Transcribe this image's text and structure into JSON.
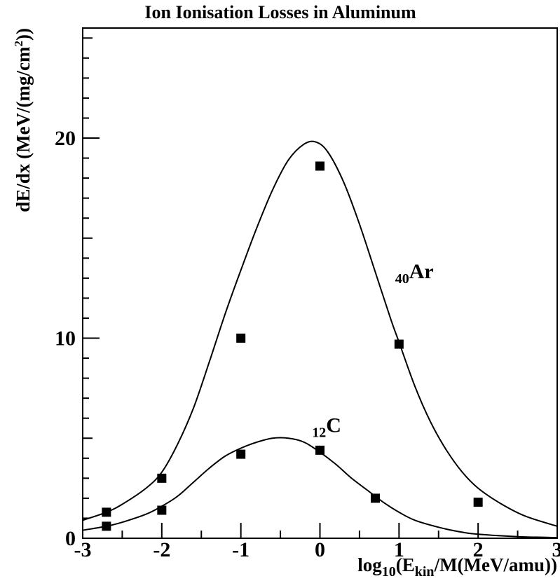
{
  "chart_data": {
    "type": "line",
    "title": "Ion Ionisation Losses in Aluminum",
    "xlabel": {
      "pre": "log",
      "sub1": "10",
      "mid": "(E",
      "sub2": "kin",
      "post": "/M(MeV/amu))"
    },
    "ylabel": {
      "pre": "dE/dx (MeV/(mg/cm",
      "sup": "2",
      "post": "))"
    },
    "xlim": [
      -3,
      3
    ],
    "ylim": [
      0,
      25.5
    ],
    "xticks": [
      -3,
      -2,
      -1,
      0,
      1,
      2,
      3
    ],
    "xtick_labels": [
      "-3",
      "-2",
      "-1",
      "0",
      "1",
      "2",
      "3"
    ],
    "yticks": [
      0,
      10,
      20
    ],
    "ytick_labels": [
      "0",
      "10",
      "20"
    ],
    "grid": false,
    "series": [
      {
        "name": "40Ar",
        "label": {
          "sub": "40",
          "main": "Ar"
        },
        "curve": {
          "x": [
            -3.0,
            -2.7,
            -2.5,
            -2.2,
            -2.0,
            -1.8,
            -1.6,
            -1.4,
            -1.2,
            -1.0,
            -0.8,
            -0.6,
            -0.4,
            -0.2,
            -0.05,
            0.1,
            0.3,
            0.5,
            0.7,
            0.9,
            1.0,
            1.2,
            1.4,
            1.6,
            1.8,
            2.0,
            2.3,
            2.6,
            3.0
          ],
          "y": [
            0.9,
            1.3,
            1.7,
            2.5,
            3.3,
            4.7,
            6.5,
            8.8,
            11.2,
            13.4,
            15.5,
            17.4,
            18.9,
            19.7,
            19.8,
            19.3,
            17.8,
            15.7,
            13.3,
            10.9,
            9.8,
            7.6,
            5.8,
            4.4,
            3.3,
            2.5,
            1.7,
            1.1,
            0.6
          ]
        },
        "points": {
          "x": [
            -2.7,
            -2.0,
            -1.0,
            0.0,
            1.0,
            2.0
          ],
          "y": [
            1.3,
            3.0,
            10.0,
            18.6,
            9.7,
            1.8
          ]
        }
      },
      {
        "name": "12C",
        "label": {
          "sub": "12",
          "main": "C"
        },
        "curve": {
          "x": [
            -3.0,
            -2.7,
            -2.5,
            -2.2,
            -2.0,
            -1.8,
            -1.6,
            -1.4,
            -1.2,
            -1.0,
            -0.8,
            -0.6,
            -0.4,
            -0.2,
            0.0,
            0.2,
            0.4,
            0.6,
            0.8,
            1.0,
            1.2,
            1.5,
            1.8,
            2.0,
            2.5,
            3.0
          ],
          "y": [
            0.4,
            0.6,
            0.8,
            1.2,
            1.6,
            2.1,
            2.8,
            3.5,
            4.1,
            4.5,
            4.8,
            5.0,
            5.0,
            4.8,
            4.3,
            3.7,
            3.0,
            2.4,
            1.8,
            1.3,
            0.9,
            0.55,
            0.3,
            0.2,
            0.08,
            0.03
          ]
        },
        "points": {
          "x": [
            -2.7,
            -2.0,
            -1.0,
            0.0,
            0.7
          ],
          "y": [
            0.6,
            1.4,
            4.2,
            4.4,
            2.0
          ]
        }
      }
    ],
    "colors": {
      "line": "#000000",
      "marker": "#000000",
      "background": "#ffffff"
    }
  }
}
